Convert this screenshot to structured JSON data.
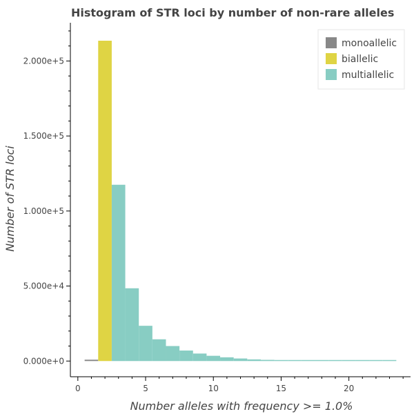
{
  "chart_data": {
    "type": "bar",
    "title": "Histogram of STR loci by number of non-rare alleles",
    "xlabel": "Number alleles with frequency >= 1.0%",
    "ylabel": "Number of STR loci",
    "xlim": [
      -0.5,
      24.5
    ],
    "ylim": [
      -10000,
      225000
    ],
    "grid": false,
    "legend_position": "top-right",
    "x_ticks": [
      0,
      5,
      10,
      15,
      20
    ],
    "y_ticks": [
      0,
      50000,
      100000,
      150000,
      200000
    ],
    "y_tick_labels": [
      "0.000e+0",
      "5.000e+4",
      "1.000e+5",
      "1.500e+5",
      "2.000e+5"
    ],
    "x_tick_labels": [
      "0",
      "5",
      "10",
      "15",
      "20"
    ],
    "series": [
      {
        "name": "monoallelic",
        "color": "#888888",
        "x": [
          1
        ],
        "values": [
          900
        ]
      },
      {
        "name": "biallelic",
        "color": "#dfd444",
        "x": [
          2
        ],
        "values": [
          213500
        ]
      },
      {
        "name": "multiallelic",
        "color": "#88cdc3",
        "x": [
          3,
          4,
          5,
          6,
          7,
          8,
          9,
          10,
          11,
          12,
          13,
          14,
          15,
          16,
          17,
          18,
          19,
          20,
          21,
          22,
          23
        ],
        "values": [
          117500,
          48500,
          23500,
          14500,
          10000,
          7000,
          5000,
          3500,
          2500,
          1700,
          1100,
          800,
          600,
          400,
          300,
          250,
          200,
          150,
          100,
          0,
          150
        ]
      }
    ]
  }
}
